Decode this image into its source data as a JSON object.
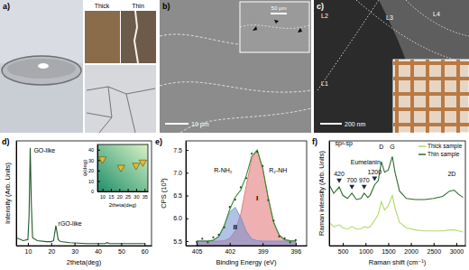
{
  "panels": {
    "a": {
      "label": "a)",
      "texts": [
        "Thick",
        "Thin"
      ]
    },
    "b": {
      "label": "b)",
      "scale_bar": "10 μm",
      "inset_scale_bar": "50 μm"
    },
    "c": {
      "label": "c)",
      "layers": [
        "L1",
        "L2",
        "L3",
        "L4"
      ],
      "scale_bar": "200 nm"
    }
  },
  "chart_data": [
    {
      "type": "line",
      "title": "d)",
      "x_label": "2theta(deg)",
      "y_label": "Intensity (Arb. Units)",
      "xlim": [
        5,
        63
      ],
      "xticks": [
        10,
        20,
        30,
        40,
        50,
        60
      ],
      "ylim": [
        0,
        105
      ],
      "tick_labels": "x",
      "color": "#1f5a2a",
      "x": [
        5,
        8,
        10,
        10.5,
        11,
        11.5,
        12,
        14,
        18,
        20,
        21,
        22,
        23,
        24,
        28,
        35,
        40,
        43,
        44,
        45,
        50,
        55,
        60
      ],
      "values": [
        8,
        5,
        6,
        30,
        98,
        40,
        8,
        5,
        4,
        4,
        5,
        20,
        6,
        4,
        3,
        2,
        2,
        2,
        3,
        2,
        2,
        2,
        2
      ],
      "annotations": [
        {
          "text": "GO-like",
          "x": 12.5,
          "y": 93
        },
        {
          "text": "rGO-like",
          "x": 23,
          "y": 20
        }
      ]
    },
    {
      "type": "scatter",
      "x_label": "2theta(deg)",
      "y_label": "ψ(deg)",
      "xlim": [
        7,
        37
      ],
      "xticks": [
        10,
        15,
        20,
        25,
        30,
        35
      ],
      "ylim": [
        0,
        45
      ],
      "yticks": [
        0,
        10,
        20,
        30,
        40
      ],
      "marker": "triangle-down",
      "color": "#e8b830",
      "x": [
        10,
        21,
        30,
        34
      ],
      "values": [
        31,
        23,
        25,
        28
      ]
    },
    {
      "type": "line",
      "title": "e)",
      "x_label": "Binding Energy (eV)",
      "y_label": "CPS (10³)",
      "xlim": [
        406,
        395
      ],
      "xticks": [
        405,
        402,
        399,
        396
      ],
      "ylim": [
        5.4,
        7.7
      ],
      "yticks": [
        5.5,
        {
          "value": 6,
          "label": "6.0"
        },
        6.5,
        {
          "value": 7,
          "label": "7.0"
        },
        7.5
      ],
      "x": [
        405,
        404.5,
        404,
        403.5,
        403,
        402.5,
        402,
        401.5,
        401,
        400.5,
        400,
        399.5,
        399,
        398.5,
        398,
        397.5,
        397,
        396.5,
        396
      ],
      "series": [
        {
          "name": "I",
          "type": "area",
          "color": "#e07070",
          "values": [
            5.5,
            5.5,
            5.5,
            5.5,
            5.5,
            5.51,
            5.56,
            5.72,
            6.1,
            6.71,
            7.31,
            7.49,
            7.1,
            6.45,
            5.91,
            5.63,
            5.53,
            5.51,
            5.5
          ]
        },
        {
          "name": "II",
          "type": "area",
          "color": "#6f8fd0",
          "values": [
            5.5,
            5.5,
            5.5,
            5.52,
            5.6,
            5.83,
            6.14,
            6.24,
            6.02,
            5.72,
            5.55,
            5.51,
            5.5,
            5.5,
            5.5,
            5.5,
            5.5,
            5.5,
            5.5
          ]
        },
        {
          "type": "line",
          "color": "#2e8b2e",
          "values": [
            5.5,
            5.5,
            5.5,
            5.52,
            5.6,
            5.84,
            6.2,
            6.46,
            6.62,
            6.93,
            7.36,
            7.5,
            7.1,
            6.45,
            5.91,
            5.63,
            5.53,
            5.51,
            5.5
          ]
        },
        {
          "type": "scatter",
          "color": "#2a4a2a",
          "values": [
            5.48,
            5.55,
            5.47,
            5.58,
            5.64,
            5.8,
            6.25,
            6.41,
            6.68,
            6.88,
            7.42,
            7.46,
            7.15,
            6.4,
            5.95,
            5.6,
            5.56,
            5.47,
            5.52
          ]
        }
      ],
      "annotations": [
        {
          "text": "R-NH₂",
          "x": 402.6,
          "y": 7.0
        },
        {
          "text": "R₂-NH",
          "x": 397.6,
          "y": 7.0
        }
      ]
    },
    {
      "type": "line",
      "title": "f)",
      "x_label": "Raman shift (cm⁻¹)",
      "y_label": "Raman intensity (Arb. Units)",
      "xlim": [
        200,
        3200
      ],
      "xticks": [
        500,
        1000,
        1500,
        2000,
        2500,
        3000
      ],
      "ylim": [
        0,
        100
      ],
      "tick_labels": "x",
      "legend": "top-right",
      "x": [
        200,
        300,
        420,
        500,
        600,
        700,
        800,
        900,
        970,
        1050,
        1100,
        1200,
        1280,
        1350,
        1420,
        1500,
        1590,
        1650,
        1750,
        1900,
        2100,
        2300,
        2500,
        2700,
        2850,
        2950,
        3050,
        3150
      ],
      "series": [
        {
          "name": "Thick sample",
          "color": "#b5d96b",
          "values": [
            22,
            18,
            20,
            17,
            16,
            18,
            16,
            16,
            18,
            17,
            18,
            24,
            30,
            42,
            34,
            38,
            48,
            36,
            22,
            17,
            15,
            14,
            14,
            14,
            15,
            15,
            14,
            13
          ]
        },
        {
          "name": "Thin sample",
          "color": "#2e6b2e",
          "values": [
            58,
            50,
            56,
            48,
            45,
            50,
            44,
            45,
            50,
            46,
            48,
            58,
            62,
            80,
            70,
            72,
            85,
            70,
            52,
            45,
            44,
            44,
            45,
            47,
            52,
            53,
            49,
            46
          ]
        }
      ],
      "annotations": [
        {
          "text": "sp²-sp",
          "x": 520,
          "y": 96
        },
        {
          "text": "Eumelanin",
          "x": 1000,
          "y": 78
        },
        {
          "text": "420",
          "x": 420,
          "y": 66
        },
        {
          "text": "700",
          "x": 700,
          "y": 60
        },
        {
          "text": "970",
          "x": 970,
          "y": 60
        },
        {
          "text": "1200",
          "x": 1200,
          "y": 68
        },
        {
          "text": "D",
          "x": 1350,
          "y": 92
        },
        {
          "text": "G",
          "x": 1590,
          "y": 92
        },
        {
          "text": "2D",
          "x": 2900,
          "y": 66
        }
      ]
    }
  ]
}
